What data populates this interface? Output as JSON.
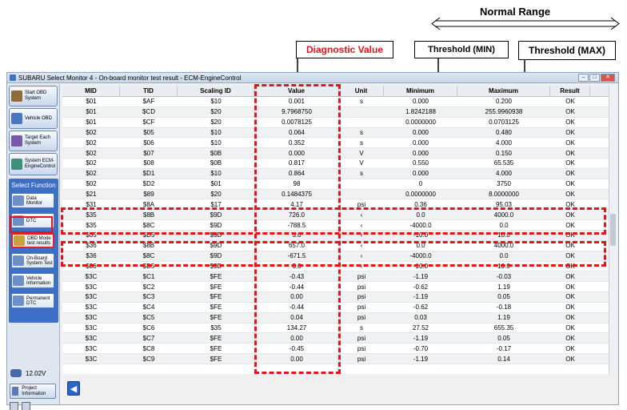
{
  "annotations": {
    "normal_range": "Normal Range",
    "diagnostic_value": "Diagnostic Value",
    "threshold_min": "Threshold (MIN)",
    "threshold_max": "Threshold (MAX)",
    "diagnostic_color": "#e3141b"
  },
  "window": {
    "title": "SUBARU Select Monitor 4 - On-board monitor test result - ECM-EngineControl",
    "controls": [
      "minimize-icon",
      "maximize-icon",
      "close-icon"
    ]
  },
  "sidebar": {
    "nav": [
      {
        "label": "Start OBD System",
        "icon": "house-icon"
      },
      {
        "label": "Vehicle OBD",
        "icon": "car-icon"
      },
      {
        "label": "Target Each System",
        "icon": "target-icon"
      },
      {
        "label": "System ECM-EngineControl",
        "icon": "system-icon"
      }
    ],
    "select_function_title": "Select Function",
    "functions": [
      {
        "label": "Data Monitor",
        "icon": "monitor-icon"
      },
      {
        "label": "DTC",
        "icon": "dtc-icon"
      },
      {
        "label": "OBD Mode test results",
        "icon": "test-results-icon",
        "active": true
      },
      {
        "label": "On-Board System Test",
        "icon": "system-test-icon"
      },
      {
        "label": "Vehicle Information",
        "icon": "info-icon"
      },
      {
        "label": "Permanent DTC",
        "icon": "permanent-dtc-icon"
      }
    ],
    "voltage": "12.02V",
    "project_info": "Project Information"
  },
  "table": {
    "headers": [
      "MID",
      "TID",
      "Scaling ID",
      "Value",
      "Unit",
      "Minimum",
      "Maximum",
      "Result"
    ],
    "rows": [
      [
        "$01",
        "$AF",
        "$10",
        "0.001",
        "s",
        "0.000",
        "0.200",
        "OK"
      ],
      [
        "$01",
        "$CD",
        "$20",
        "9.7968750",
        "",
        "1.8242188",
        "255.9960938",
        "OK"
      ],
      [
        "$01",
        "$CF",
        "$20",
        "0.0078125",
        "",
        "0.0000000",
        "0.0703125",
        "OK"
      ],
      [
        "$02",
        "$05",
        "$10",
        "0.064",
        "s",
        "0.000",
        "0.480",
        "OK"
      ],
      [
        "$02",
        "$06",
        "$10",
        "0.352",
        "s",
        "0.000",
        "4.000",
        "OK"
      ],
      [
        "$02",
        "$07",
        "$0B",
        "0.000",
        "V",
        "0.000",
        "0.150",
        "OK"
      ],
      [
        "$02",
        "$08",
        "$0B",
        "0.817",
        "V",
        "0.550",
        "65.535",
        "OK"
      ],
      [
        "$02",
        "$D1",
        "$10",
        "0.864",
        "s",
        "0.000",
        "4.000",
        "OK"
      ],
      [
        "$02",
        "$D2",
        "$01",
        "98",
        "",
        "0",
        "3750",
        "OK"
      ],
      [
        "$21",
        "$89",
        "$20",
        "0.1484375",
        "",
        "0.0000000",
        "8.0000000",
        "OK"
      ],
      [
        "$31",
        "$8A",
        "$17",
        "4.17",
        "psi",
        "0.36",
        "95.03",
        "OK"
      ],
      [
        "$35",
        "$8B",
        "$9D",
        "726.0",
        "‹",
        "0.0",
        "4000.0",
        "OK"
      ],
      [
        "$35",
        "$8C",
        "$9D",
        "-788.5",
        "‹",
        "-4000.0",
        "0.0",
        "OK"
      ],
      [
        "$35",
        "$D5",
        "$9D",
        "3.0",
        "‹",
        "-10.0",
        "10.0",
        "OK"
      ],
      [
        "$36",
        "$8B",
        "$9D",
        "657.0",
        "‹",
        "0.0",
        "4000.0",
        "OK"
      ],
      [
        "$36",
        "$8C",
        "$9D",
        "-671.5",
        "‹",
        "-4000.0",
        "0.0",
        "OK"
      ],
      [
        "$36",
        "$D5",
        "$9D",
        "3.0",
        "‹",
        "-10.0",
        "10.0",
        "OK"
      ],
      [
        "$3C",
        "$C1",
        "$FE",
        "-0.43",
        "psi",
        "-1.19",
        "-0.03",
        "OK"
      ],
      [
        "$3C",
        "$C2",
        "$FE",
        "-0.44",
        "psi",
        "-0.62",
        "1.19",
        "OK"
      ],
      [
        "$3C",
        "$C3",
        "$FE",
        "0.00",
        "psi",
        "-1.19",
        "0.05",
        "OK"
      ],
      [
        "$3C",
        "$C4",
        "$FE",
        "-0.44",
        "psi",
        "-0.62",
        "-0.18",
        "OK"
      ],
      [
        "$3C",
        "$C5",
        "$FE",
        "0.04",
        "psi",
        "0.03",
        "1.19",
        "OK"
      ],
      [
        "$3C",
        "$C6",
        "$35",
        "134.27",
        "s",
        "27.52",
        "655.35",
        "OK"
      ],
      [
        "$3C",
        "$C7",
        "$FE",
        "0.00",
        "psi",
        "-1.19",
        "0.05",
        "OK"
      ],
      [
        "$3C",
        "$C8",
        "$FE",
        "-0.45",
        "psi",
        "-0.70",
        "-0.17",
        "OK"
      ],
      [
        "$3C",
        "$C9",
        "$FE",
        "0.00",
        "psi",
        "-1.19",
        "0.14",
        "OK"
      ]
    ]
  }
}
